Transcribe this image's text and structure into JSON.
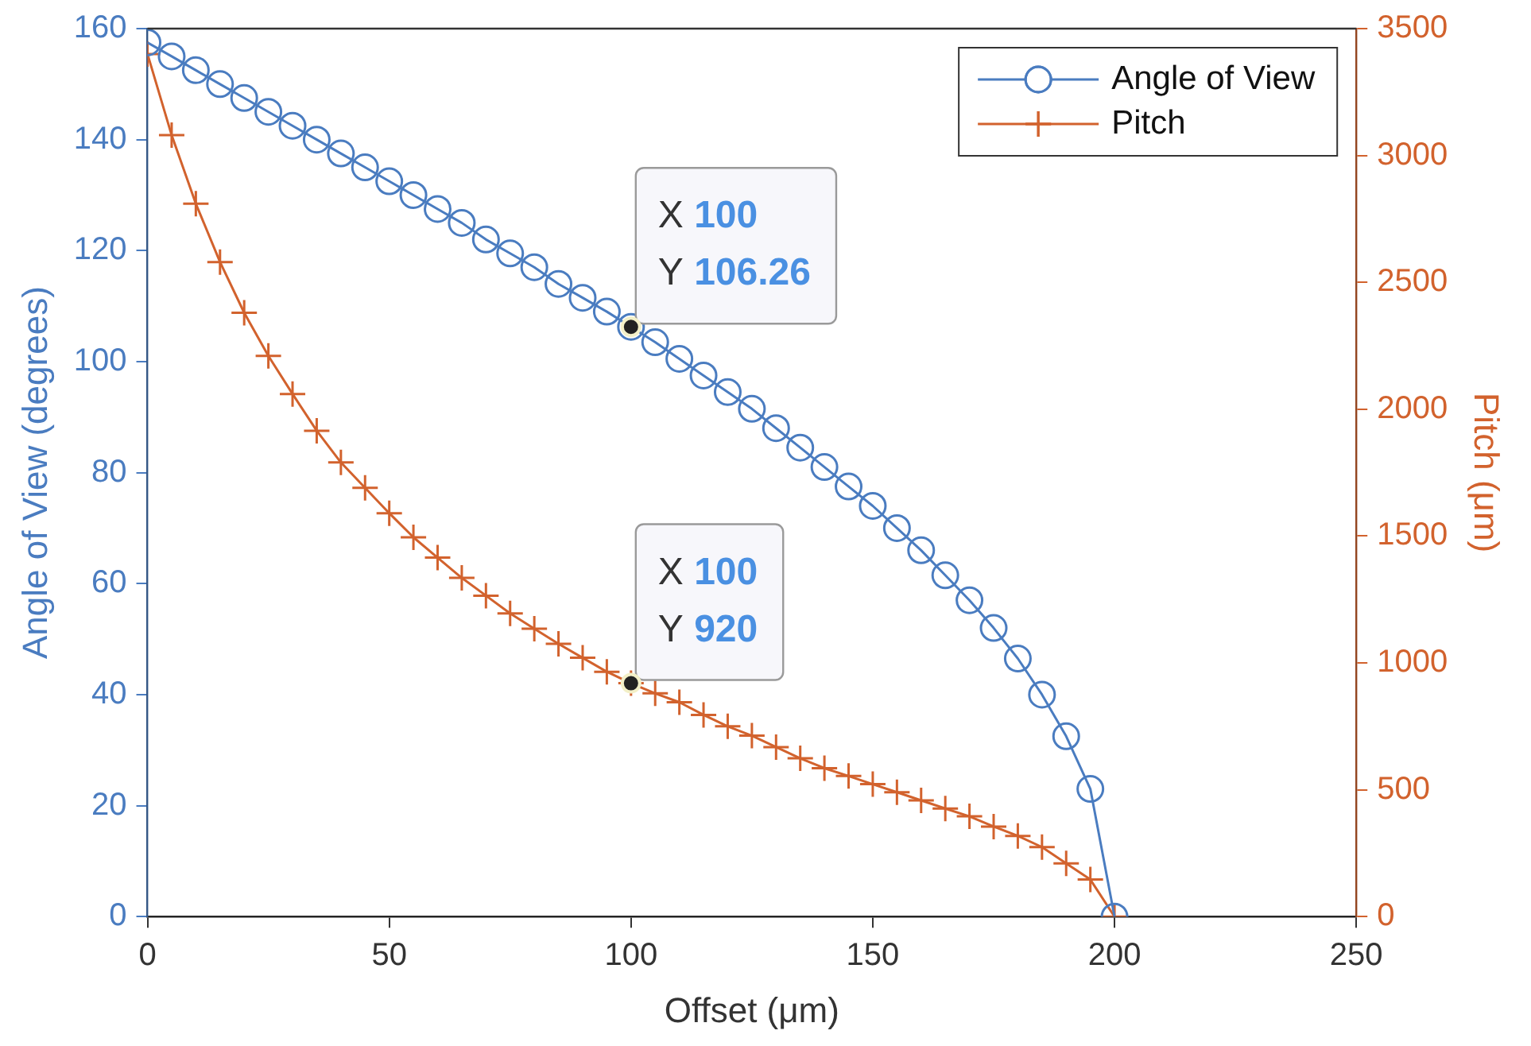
{
  "chart_data": {
    "type": "line",
    "xlabel": "Offset (μm)",
    "ylabel": "Angle of View (degrees)",
    "y2label": "Pitch (μm)",
    "x": [
      0,
      5,
      10,
      15,
      20,
      25,
      30,
      35,
      40,
      45,
      50,
      55,
      60,
      65,
      70,
      75,
      80,
      85,
      90,
      95,
      100,
      105,
      110,
      115,
      120,
      125,
      130,
      135,
      140,
      145,
      150,
      155,
      160,
      165,
      170,
      175,
      180,
      185,
      190,
      195,
      200
    ],
    "series": [
      {
        "name": "Angle of View",
        "color": "#4a7cc0",
        "marker": "circle",
        "values": [
          157.5,
          155,
          152.5,
          150,
          147.5,
          145,
          142.5,
          140,
          137.5,
          135,
          132.5,
          130,
          127.5,
          125,
          122,
          119.5,
          117,
          114,
          111.5,
          109,
          106.26,
          103.5,
          100.5,
          97.5,
          94.5,
          91.5,
          88,
          84.5,
          81,
          77.5,
          74,
          70,
          66,
          61.5,
          57,
          52,
          46.5,
          40,
          32.5,
          23,
          0
        ]
      },
      {
        "name": "Pitch",
        "color": "#d2622d",
        "marker": "cross",
        "axis": "y2",
        "values": [
          3400,
          3080,
          2810,
          2580,
          2380,
          2210,
          2060,
          1915,
          1790,
          1690,
          1590,
          1495,
          1415,
          1335,
          1265,
          1195,
          1135,
          1075,
          1020,
          965,
          920,
          880,
          845,
          795,
          750,
          713,
          668,
          624,
          585,
          554,
          522,
          490,
          458,
          426,
          395,
          355,
          318,
          274,
          210,
          146,
          0
        ]
      }
    ],
    "xlim": [
      0,
      250
    ],
    "xticks": [
      0,
      50,
      100,
      150,
      200,
      250
    ],
    "ylim": [
      0,
      160
    ],
    "yticks": [
      0,
      20,
      40,
      60,
      80,
      100,
      120,
      140,
      160
    ],
    "y2lim": [
      0,
      3500
    ],
    "y2ticks": [
      0,
      500,
      1000,
      1500,
      2000,
      2500,
      3000,
      3500
    ],
    "legend": "top right",
    "grid": false,
    "annotations": [
      {
        "text": "X 100\nY 106.26",
        "x": 100,
        "y": 106.26
      },
      "X 100\nY 920"
    ]
  }
}
